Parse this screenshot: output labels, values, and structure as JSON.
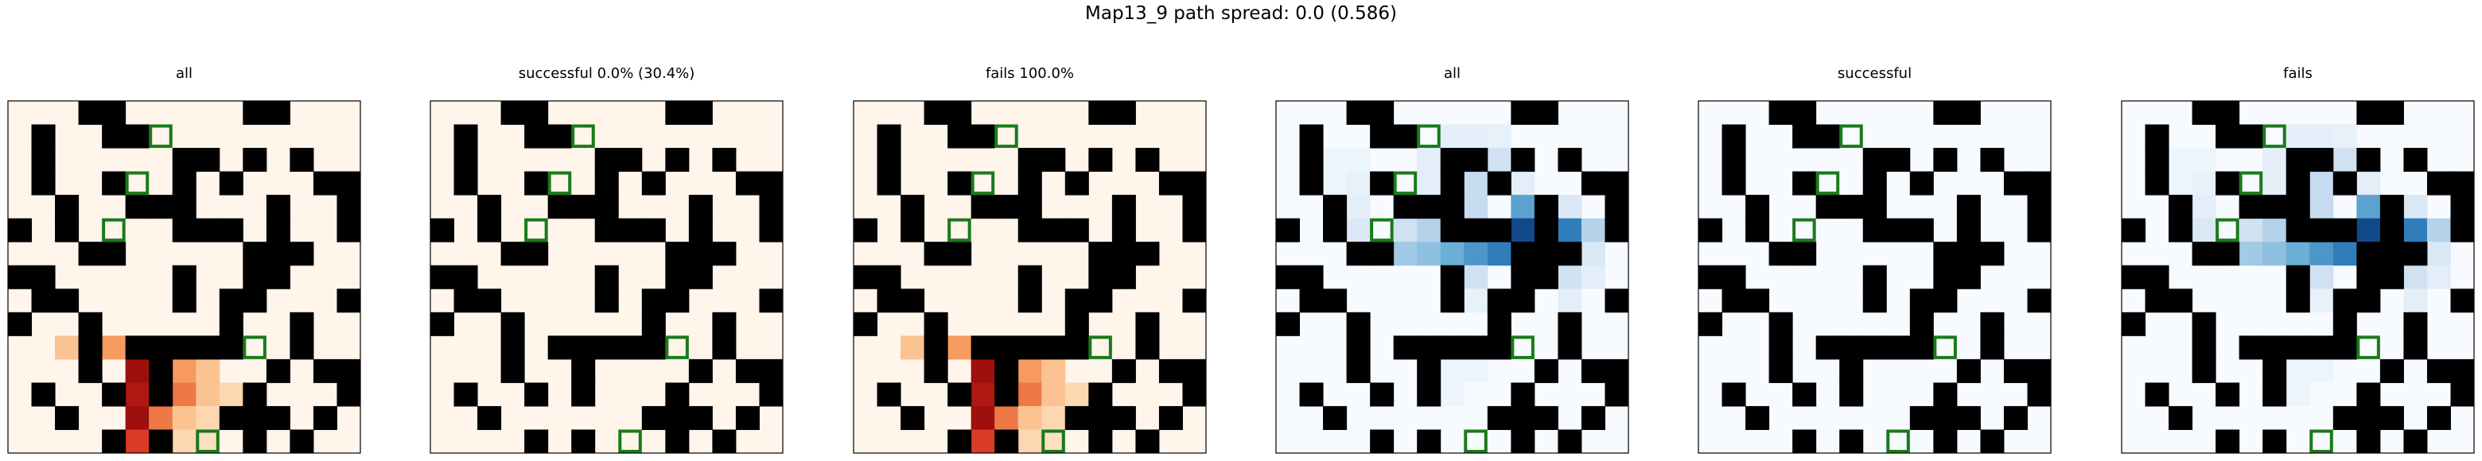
{
  "title": "Map13_9 path spread: 0.0 (0.586)",
  "colors": {
    "wall": "#000000",
    "goal_outline": "#1a7a1a",
    "panel_border": "#000000"
  },
  "chart_data": {
    "type": "heatmap",
    "grid_size": [
      15,
      15
    ],
    "walls": [
      [
        0,
        3
      ],
      [
        0,
        4
      ],
      [
        0,
        10
      ],
      [
        0,
        11
      ],
      [
        1,
        1
      ],
      [
        1,
        4
      ],
      [
        1,
        5
      ],
      [
        2,
        1
      ],
      [
        2,
        7
      ],
      [
        2,
        8
      ],
      [
        2,
        10
      ],
      [
        2,
        12
      ],
      [
        3,
        1
      ],
      [
        3,
        4
      ],
      [
        3,
        7
      ],
      [
        3,
        9
      ],
      [
        3,
        13
      ],
      [
        3,
        14
      ],
      [
        4,
        2
      ],
      [
        4,
        5
      ],
      [
        4,
        6
      ],
      [
        4,
        7
      ],
      [
        4,
        11
      ],
      [
        4,
        14
      ],
      [
        5,
        0
      ],
      [
        5,
        2
      ],
      [
        5,
        7
      ],
      [
        5,
        8
      ],
      [
        5,
        9
      ],
      [
        5,
        11
      ],
      [
        5,
        14
      ],
      [
        6,
        3
      ],
      [
        6,
        4
      ],
      [
        6,
        10
      ],
      [
        6,
        11
      ],
      [
        6,
        12
      ],
      [
        7,
        0
      ],
      [
        7,
        1
      ],
      [
        7,
        7
      ],
      [
        7,
        10
      ],
      [
        7,
        11
      ],
      [
        8,
        1
      ],
      [
        8,
        2
      ],
      [
        8,
        7
      ],
      [
        8,
        9
      ],
      [
        8,
        10
      ],
      [
        8,
        14
      ],
      [
        9,
        0
      ],
      [
        9,
        3
      ],
      [
        9,
        9
      ],
      [
        9,
        12
      ],
      [
        10,
        3
      ],
      [
        10,
        5
      ],
      [
        10,
        6
      ],
      [
        10,
        7
      ],
      [
        10,
        8
      ],
      [
        10,
        9
      ],
      [
        10,
        12
      ],
      [
        11,
        3
      ],
      [
        11,
        6
      ],
      [
        11,
        11
      ],
      [
        11,
        13
      ],
      [
        11,
        14
      ],
      [
        12,
        1
      ],
      [
        12,
        4
      ],
      [
        12,
        6
      ],
      [
        12,
        10
      ],
      [
        12,
        14
      ],
      [
        13,
        2
      ],
      [
        13,
        9
      ],
      [
        13,
        10
      ],
      [
        13,
        11
      ],
      [
        13,
        13
      ],
      [
        14,
        4
      ],
      [
        14,
        6
      ],
      [
        14,
        10
      ],
      [
        14,
        12
      ]
    ],
    "goals": [
      [
        1,
        6
      ],
      [
        3,
        5
      ],
      [
        5,
        4
      ],
      [
        10,
        10
      ],
      [
        14,
        8
      ]
    ],
    "panels": [
      {
        "title": "all",
        "colormap": "Oranges-Reds",
        "values": [
          [
            10,
            2,
            0.3
          ],
          [
            10,
            3,
            0.35
          ],
          [
            10,
            4,
            0.45
          ],
          [
            11,
            5,
            0.9
          ],
          [
            11,
            6,
            0.6
          ],
          [
            11,
            7,
            0.45
          ],
          [
            11,
            8,
            0.3
          ],
          [
            12,
            5,
            0.85
          ],
          [
            12,
            6,
            0.9
          ],
          [
            12,
            7,
            0.55
          ],
          [
            12,
            8,
            0.3
          ],
          [
            12,
            9,
            0.2
          ],
          [
            13,
            5,
            0.9
          ],
          [
            13,
            6,
            0.55
          ],
          [
            13,
            7,
            0.3
          ],
          [
            13,
            8,
            0.2
          ],
          [
            14,
            5,
            0.7
          ],
          [
            14,
            6,
            0.35
          ],
          [
            14,
            7,
            0.2
          ],
          [
            14,
            8,
            0.15
          ]
        ]
      },
      {
        "title": "successful 0.0% (30.4%)",
        "colormap": "Oranges-Reds",
        "values": []
      },
      {
        "title": "fails 100.0%",
        "colormap": "Oranges-Reds",
        "values": [
          [
            10,
            2,
            0.3
          ],
          [
            10,
            3,
            0.35
          ],
          [
            10,
            4,
            0.45
          ],
          [
            11,
            5,
            0.9
          ],
          [
            11,
            6,
            0.6
          ],
          [
            11,
            7,
            0.45
          ],
          [
            11,
            8,
            0.3
          ],
          [
            12,
            5,
            0.85
          ],
          [
            12,
            6,
            0.9
          ],
          [
            12,
            7,
            0.55
          ],
          [
            12,
            8,
            0.3
          ],
          [
            12,
            9,
            0.2
          ],
          [
            13,
            5,
            0.9
          ],
          [
            13,
            6,
            0.55
          ],
          [
            13,
            7,
            0.3
          ],
          [
            13,
            8,
            0.2
          ],
          [
            14,
            5,
            0.7
          ],
          [
            14,
            6,
            0.35
          ],
          [
            14,
            7,
            0.2
          ],
          [
            14,
            8,
            0.15
          ]
        ]
      },
      {
        "title": "all",
        "colormap": "Blues",
        "values": [
          [
            1,
            7,
            0.1
          ],
          [
            1,
            8,
            0.1
          ],
          [
            1,
            9,
            0.08
          ],
          [
            2,
            2,
            0.05
          ],
          [
            2,
            3,
            0.05
          ],
          [
            2,
            6,
            0.1
          ],
          [
            2,
            9,
            0.2
          ],
          [
            2,
            10,
            0.1
          ],
          [
            3,
            2,
            0.05
          ],
          [
            3,
            3,
            0.08
          ],
          [
            3,
            6,
            0.1
          ],
          [
            3,
            7,
            0.15
          ],
          [
            3,
            8,
            0.25
          ],
          [
            3,
            10,
            0.1
          ],
          [
            4,
            3,
            0.1
          ],
          [
            4,
            8,
            0.25
          ],
          [
            4,
            10,
            0.55
          ],
          [
            4,
            12,
            0.15
          ],
          [
            5,
            3,
            0.15
          ],
          [
            5,
            5,
            0.2
          ],
          [
            5,
            6,
            0.3
          ],
          [
            5,
            10,
            0.9
          ],
          [
            5,
            12,
            0.7
          ],
          [
            5,
            13,
            0.3
          ],
          [
            6,
            3,
            0.25
          ],
          [
            6,
            5,
            0.35
          ],
          [
            6,
            6,
            0.4
          ],
          [
            6,
            7,
            0.5
          ],
          [
            6,
            8,
            0.6
          ],
          [
            6,
            9,
            0.7
          ],
          [
            6,
            13,
            0.15
          ],
          [
            7,
            8,
            0.2
          ],
          [
            7,
            12,
            0.2
          ],
          [
            7,
            13,
            0.1
          ],
          [
            8,
            8,
            0.08
          ],
          [
            8,
            12,
            0.1
          ],
          [
            11,
            7,
            0.05
          ],
          [
            11,
            8,
            0.05
          ],
          [
            12,
            7,
            0.05
          ]
        ]
      },
      {
        "title": "successful",
        "colormap": "Blues",
        "values": []
      },
      {
        "title": "fails",
        "colormap": "Blues",
        "values": [
          [
            1,
            7,
            0.1
          ],
          [
            1,
            8,
            0.1
          ],
          [
            1,
            9,
            0.08
          ],
          [
            2,
            2,
            0.05
          ],
          [
            2,
            3,
            0.05
          ],
          [
            2,
            6,
            0.1
          ],
          [
            2,
            9,
            0.2
          ],
          [
            2,
            10,
            0.1
          ],
          [
            3,
            2,
            0.05
          ],
          [
            3,
            3,
            0.08
          ],
          [
            3,
            6,
            0.1
          ],
          [
            3,
            7,
            0.15
          ],
          [
            3,
            8,
            0.25
          ],
          [
            3,
            10,
            0.1
          ],
          [
            4,
            3,
            0.1
          ],
          [
            4,
            8,
            0.25
          ],
          [
            4,
            10,
            0.55
          ],
          [
            4,
            12,
            0.15
          ],
          [
            5,
            3,
            0.15
          ],
          [
            5,
            5,
            0.2
          ],
          [
            5,
            6,
            0.3
          ],
          [
            5,
            10,
            0.9
          ],
          [
            5,
            12,
            0.7
          ],
          [
            5,
            13,
            0.3
          ],
          [
            6,
            3,
            0.25
          ],
          [
            6,
            5,
            0.35
          ],
          [
            6,
            6,
            0.4
          ],
          [
            6,
            7,
            0.5
          ],
          [
            6,
            8,
            0.6
          ],
          [
            6,
            9,
            0.7
          ],
          [
            6,
            13,
            0.15
          ],
          [
            7,
            8,
            0.2
          ],
          [
            7,
            12,
            0.2
          ],
          [
            7,
            13,
            0.1
          ],
          [
            8,
            8,
            0.08
          ],
          [
            8,
            12,
            0.1
          ],
          [
            11,
            7,
            0.05
          ],
          [
            11,
            8,
            0.05
          ],
          [
            12,
            7,
            0.05
          ]
        ]
      }
    ]
  }
}
